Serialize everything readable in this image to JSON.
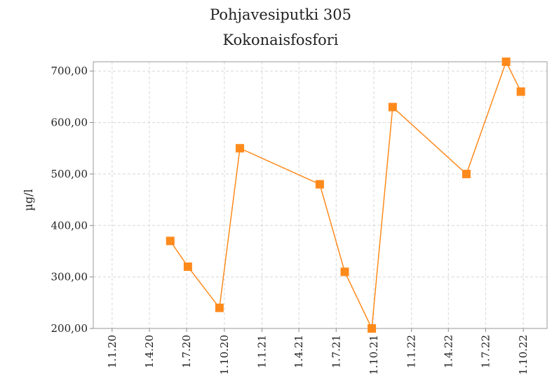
{
  "chart_data": {
    "type": "line",
    "title": "Pohjavesiputki 305",
    "subtitle": "Kokonaisfosfori",
    "y_label": "µg/l",
    "x": [
      "2020-05-22",
      "2020-07-04",
      "2020-09-19",
      "2020-11-08",
      "2021-05-22",
      "2021-07-22",
      "2021-09-26",
      "2021-11-16",
      "2022-05-15",
      "2022-08-20",
      "2022-09-25"
    ],
    "series": [
      {
        "name": "Kokonaisfosfori",
        "color": "#ff8a1c",
        "values": [
          370,
          320,
          240,
          550,
          480,
          310,
          200,
          630,
          500,
          718,
          660
        ]
      }
    ],
    "xlim": [
      "2019-11-16",
      "2022-11-28"
    ],
    "xticks": [
      {
        "value": "2020-01-01",
        "label": "1.1.20"
      },
      {
        "value": "2020-04-01",
        "label": "1.4.20"
      },
      {
        "value": "2020-07-01",
        "label": "1.7.20"
      },
      {
        "value": "2020-10-01",
        "label": "1.10.20"
      },
      {
        "value": "2021-01-01",
        "label": "1.1.21"
      },
      {
        "value": "2021-04-01",
        "label": "1.4.21"
      },
      {
        "value": "2021-07-01",
        "label": "1.7.21"
      },
      {
        "value": "2021-10-01",
        "label": "1.10.21"
      },
      {
        "value": "2022-01-01",
        "label": "1.1.22"
      },
      {
        "value": "2022-04-01",
        "label": "1.4.22"
      },
      {
        "value": "2022-07-01",
        "label": "1.7.22"
      },
      {
        "value": "2022-10-01",
        "label": "1.10.22"
      }
    ],
    "ylim": [
      200,
      718
    ],
    "yticks": [
      {
        "value": 200,
        "label": "200,00"
      },
      {
        "value": 300,
        "label": "300,00"
      },
      {
        "value": 400,
        "label": "400,00"
      },
      {
        "value": 500,
        "label": "500,00"
      },
      {
        "value": 600,
        "label": "600,00"
      },
      {
        "value": 700,
        "label": "700,00"
      }
    ],
    "grid": true
  }
}
